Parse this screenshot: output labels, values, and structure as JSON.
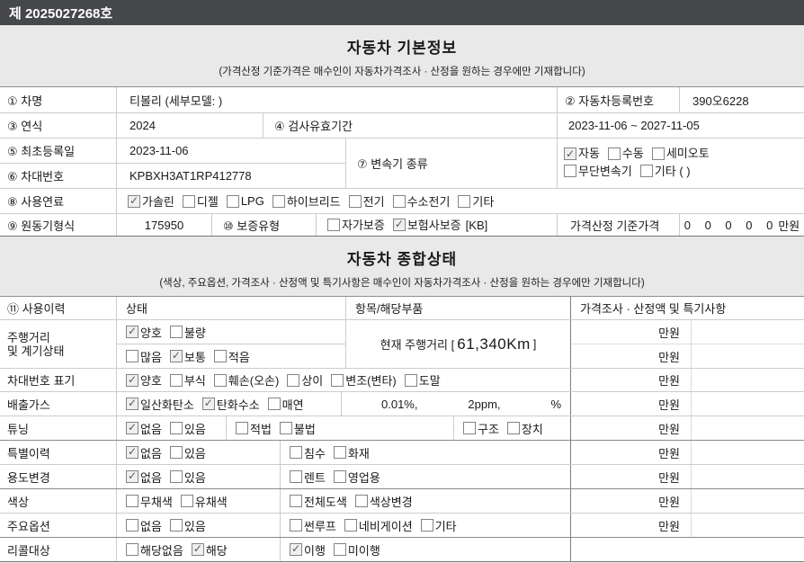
{
  "doc_no": "제 2025027268호",
  "section1": {
    "title": "자동차 기본정보",
    "subtitle": "(가격산정 기준가격은 매수인이 자동차가격조사 · 산정을 원하는 경우에만 기재합니다)"
  },
  "basic": {
    "car_name_label": "① 차명",
    "car_name": "티볼리 (세부모델: )",
    "reg_no_label": "② 자동차등록번호",
    "reg_no": "390오6228",
    "year_label": "③ 연식",
    "year": "2024",
    "inspection_label": "④ 검사유효기간",
    "inspection": "2023-11-06 ~ 2027-11-05",
    "first_reg_label": "⑤ 최초등록일",
    "first_reg": "2023-11-06",
    "vin_label": "⑥ 차대번호",
    "vin": "KPBXH3AT1RP412778",
    "transmission_label": "⑦ 변속기 종류",
    "transmission_options_line1": [
      {
        "label": "자동",
        "checked": true
      },
      {
        "label": "수동",
        "checked": false
      },
      {
        "label": "세미오토",
        "checked": false
      }
    ],
    "transmission_options_line2": [
      {
        "label": "무단변속기",
        "checked": false
      },
      {
        "label": "기타 (        )",
        "checked": false
      }
    ],
    "fuel_label": "⑧ 사용연료",
    "fuel_options": [
      {
        "label": "가솔린",
        "checked": true
      },
      {
        "label": "디젤",
        "checked": false
      },
      {
        "label": "LPG",
        "checked": false
      },
      {
        "label": "하이브리드",
        "checked": false
      },
      {
        "label": "전기",
        "checked": false
      },
      {
        "label": "수소전기",
        "checked": false
      },
      {
        "label": "기타",
        "checked": false
      }
    ],
    "engine_label": "⑨ 원동기형식",
    "engine": "175950",
    "warranty_label": "⑩ 보증유형",
    "warranty_options": [
      {
        "label": "자가보증",
        "checked": false
      },
      {
        "label": "보험사보증",
        "checked": true
      }
    ],
    "warranty_note": "[KB]",
    "base_price_label": "가격산정 기준가격",
    "base_price_digits": "0 0 0 0 0",
    "base_price_unit": "만원"
  },
  "section2": {
    "title": "자동차 종합상태",
    "subtitle": "(색상, 주요옵션, 가격조사 · 산정액 및 특기사항은 매수인이 자동차가격조사 · 산정을 원하는 경우에만 기재합니다)"
  },
  "condition": {
    "headers": {
      "usage": "⑪ 사용이력",
      "state": "상태",
      "parts": "항목/해당부품",
      "price": "가격조사 · 산정액 및 특기사항"
    },
    "price_unit": "만원",
    "mileage": {
      "label_line1": "주행거리",
      "label_line2": "및 계기상태",
      "row1_options": [
        {
          "label": "양호",
          "checked": true
        },
        {
          "label": "불량",
          "checked": false
        }
      ],
      "row2_options": [
        {
          "label": "많음",
          "checked": false
        },
        {
          "label": "보통",
          "checked": true
        },
        {
          "label": "적음",
          "checked": false
        }
      ],
      "current_prefix": "현재 주행거리 [",
      "current_value": "61,340Km",
      "current_suffix": "]"
    },
    "vin_mark": {
      "label": "차대번호 표기",
      "options": [
        {
          "label": "양호",
          "checked": true
        },
        {
          "label": "부식",
          "checked": false
        },
        {
          "label": "훼손(오손)",
          "checked": false
        },
        {
          "label": "상이",
          "checked": false
        },
        {
          "label": "변조(변타)",
          "checked": false
        },
        {
          "label": "도말",
          "checked": false
        }
      ]
    },
    "emission": {
      "label": "배출가스",
      "options": [
        {
          "label": "일산화탄소",
          "checked": true
        },
        {
          "label": "탄화수소",
          "checked": true
        },
        {
          "label": "매연",
          "checked": false
        }
      ],
      "values": [
        "0.01%,",
        "2ppm,",
        "%"
      ]
    },
    "tuning": {
      "label": "튜닝",
      "g1": [
        {
          "label": "없음",
          "checked": true
        },
        {
          "label": "있음",
          "checked": false
        }
      ],
      "g2": [
        {
          "label": "적법",
          "checked": false
        },
        {
          "label": "불법",
          "checked": false
        }
      ],
      "g3": [
        {
          "label": "구조",
          "checked": false
        },
        {
          "label": "장치",
          "checked": false
        }
      ]
    },
    "special": {
      "label": "특별이력",
      "g1": [
        {
          "label": "없음",
          "checked": true
        },
        {
          "label": "있음",
          "checked": false
        }
      ],
      "g2": [
        {
          "label": "침수",
          "checked": false
        },
        {
          "label": "화재",
          "checked": false
        }
      ]
    },
    "usage_change": {
      "label": "용도변경",
      "g1": [
        {
          "label": "없음",
          "checked": true
        },
        {
          "label": "있음",
          "checked": false
        }
      ],
      "g2": [
        {
          "label": "렌트",
          "checked": false
        },
        {
          "label": "영업용",
          "checked": false
        }
      ]
    },
    "color": {
      "label": "색상",
      "g1": [
        {
          "label": "무채색",
          "checked": false
        },
        {
          "label": "유채색",
          "checked": false
        }
      ],
      "g2": [
        {
          "label": "전체도색",
          "checked": false
        },
        {
          "label": "색상변경",
          "checked": false
        }
      ]
    },
    "options_row": {
      "label": "주요옵션",
      "g1": [
        {
          "label": "없음",
          "checked": false
        },
        {
          "label": "있음",
          "checked": false
        }
      ],
      "g2": [
        {
          "label": "썬루프",
          "checked": false
        },
        {
          "label": "네비게이션",
          "checked": false
        },
        {
          "label": "기타",
          "checked": false
        }
      ]
    },
    "recall": {
      "label": "리콜대상",
      "g1": [
        {
          "label": "해당없음",
          "checked": false
        },
        {
          "label": "해당",
          "checked": true
        }
      ],
      "g2": [
        {
          "label": "이행",
          "checked": true
        },
        {
          "label": "미이행",
          "checked": false
        }
      ]
    }
  }
}
